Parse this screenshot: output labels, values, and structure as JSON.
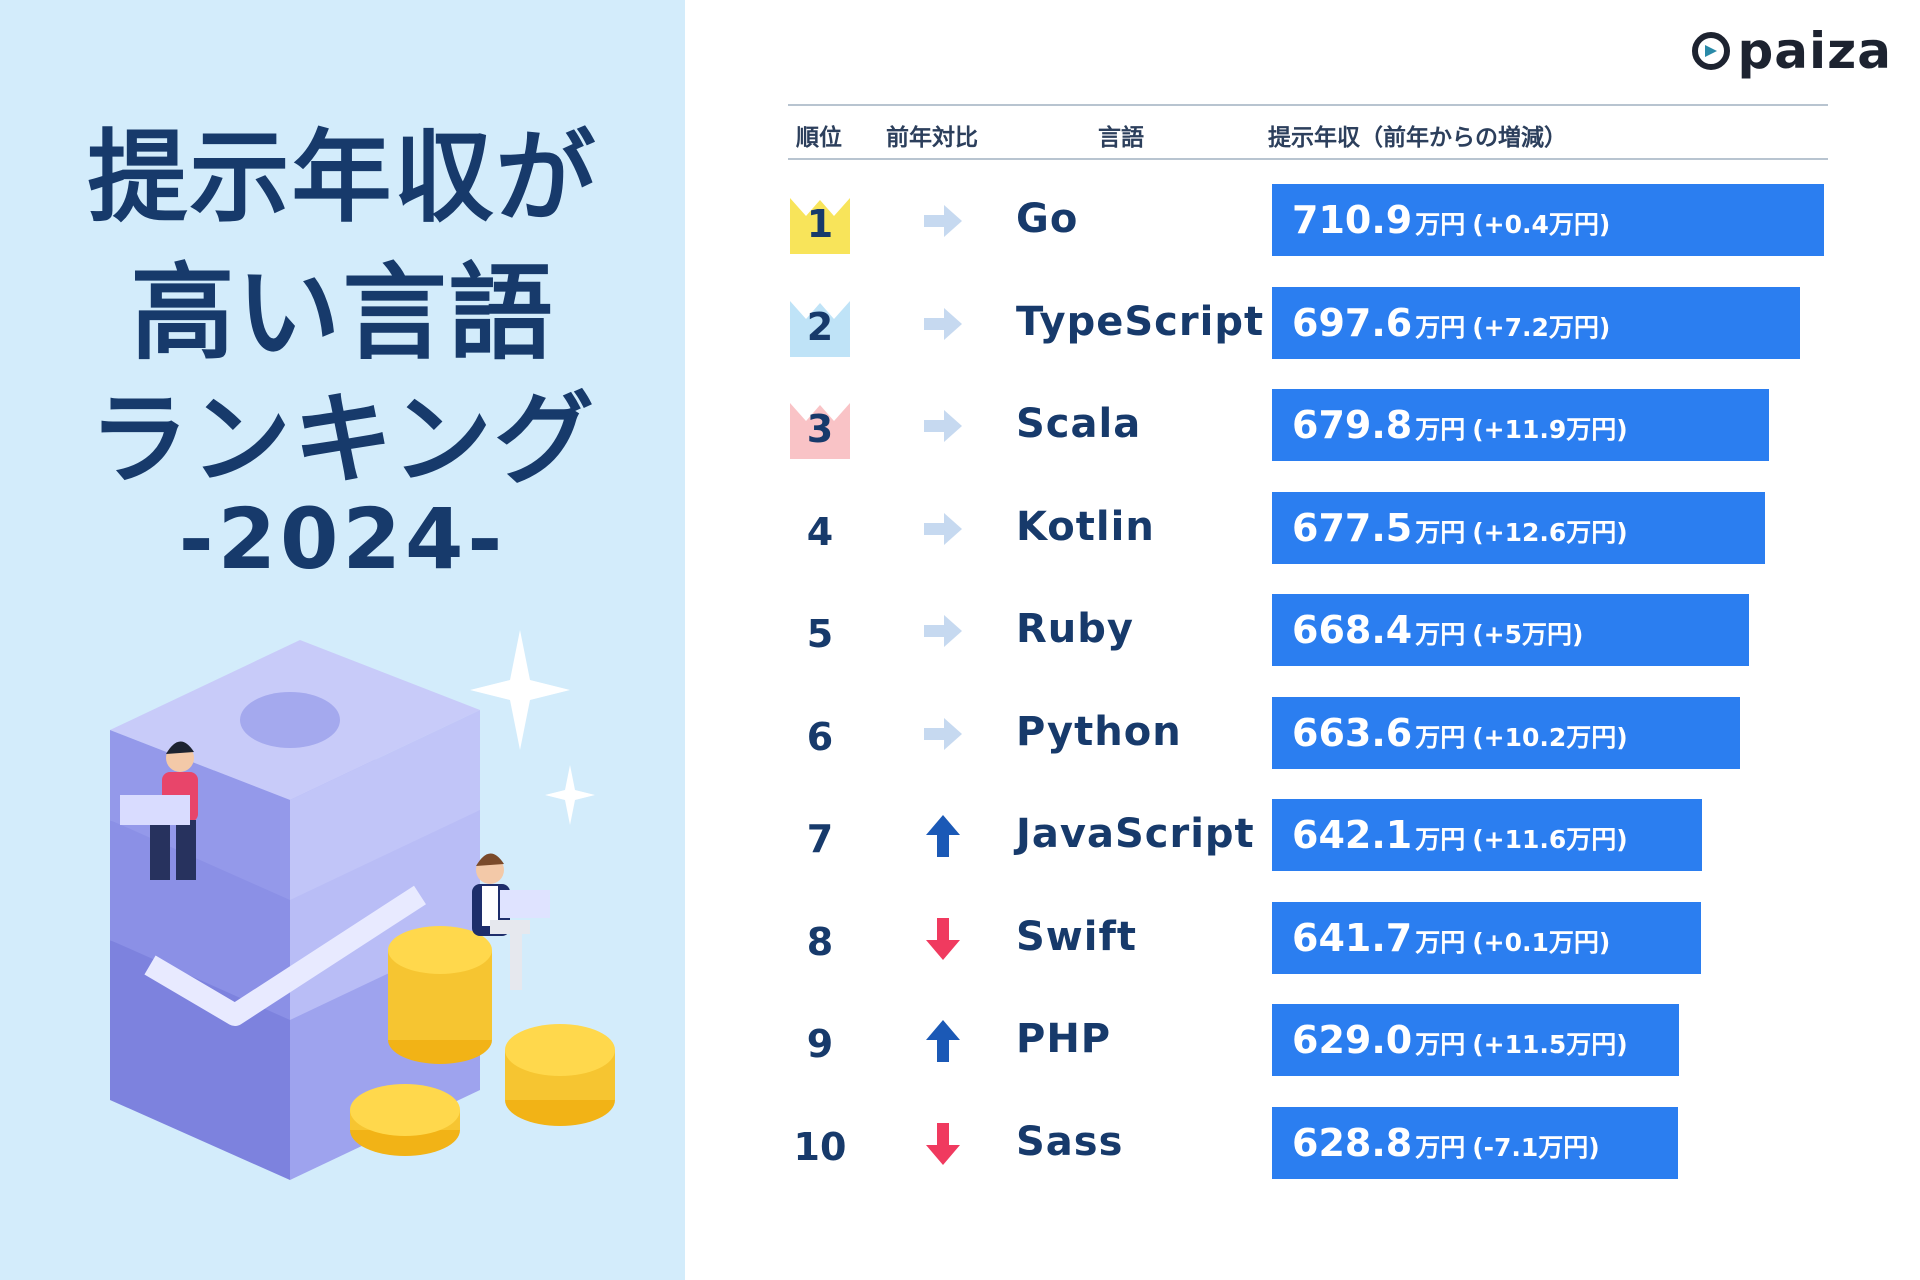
{
  "title": {
    "line1": "提示年収が",
    "line2": "高い言語",
    "line3": "ランキング",
    "line4": "-2024-"
  },
  "logo": {
    "text": "paiza"
  },
  "colors": {
    "left_bg": "#d3ecfb",
    "navy": "#173a6b",
    "bar": "#2b7ef0",
    "arrow_up": "#1b59b6",
    "arrow_down": "#f03a5f",
    "arrow_same": "#c6d9f0",
    "crown_gold": "#f8e45a",
    "crown_silver": "#bfe3f7",
    "crown_bronze": "#f9c3c6"
  },
  "table": {
    "headers": {
      "rank": "順位",
      "trend": "前年対比",
      "language": "言語",
      "salary": "提示年収（前年からの増減）"
    }
  },
  "chart_data": {
    "type": "bar",
    "orientation": "horizontal",
    "unit": "万円",
    "categories": [
      "Go",
      "TypeScript",
      "Scala",
      "Kotlin",
      "Ruby",
      "Python",
      "JavaScript",
      "Swift",
      "PHP",
      "Sass"
    ],
    "rows": [
      {
        "rank": "1",
        "trend": "same",
        "crown": "gold",
        "language": "Go",
        "value": 710.9,
        "value_text": "710.9",
        "unit": "万円",
        "change_text": "(+0.4万円)"
      },
      {
        "rank": "2",
        "trend": "same",
        "crown": "silver",
        "language": "TypeScript",
        "value": 697.6,
        "value_text": "697.6",
        "unit": "万円",
        "change_text": "(+7.2万円)"
      },
      {
        "rank": "3",
        "trend": "same",
        "crown": "bronze",
        "language": "Scala",
        "value": 679.8,
        "value_text": "679.8",
        "unit": "万円",
        "change_text": "(+11.9万円)"
      },
      {
        "rank": "4",
        "trend": "same",
        "crown": "",
        "language": "Kotlin",
        "value": 677.5,
        "value_text": "677.5",
        "unit": "万円",
        "change_text": "(+12.6万円)"
      },
      {
        "rank": "5",
        "trend": "same",
        "crown": "",
        "language": "Ruby",
        "value": 668.4,
        "value_text": "668.4",
        "unit": "万円",
        "change_text": "(+5万円)"
      },
      {
        "rank": "6",
        "trend": "same",
        "crown": "",
        "language": "Python",
        "value": 663.6,
        "value_text": "663.6",
        "unit": "万円",
        "change_text": "(+10.2万円)"
      },
      {
        "rank": "7",
        "trend": "up",
        "crown": "",
        "language": "JavaScript",
        "value": 642.1,
        "value_text": "642.1",
        "unit": "万円",
        "change_text": "(+11.6万円)"
      },
      {
        "rank": "8",
        "trend": "down",
        "crown": "",
        "language": "Swift",
        "value": 641.7,
        "value_text": "641.7",
        "unit": "万円",
        "change_text": "(+0.1万円)"
      },
      {
        "rank": "9",
        "trend": "up",
        "crown": "",
        "language": "PHP",
        "value": 629.0,
        "value_text": "629.0",
        "unit": "万円",
        "change_text": "(+11.5万円)"
      },
      {
        "rank": "10",
        "trend": "down",
        "crown": "",
        "language": "Sass",
        "value": 628.8,
        "value_text": "628.8",
        "unit": "万円",
        "change_text": "(-7.1万円)"
      }
    ]
  }
}
